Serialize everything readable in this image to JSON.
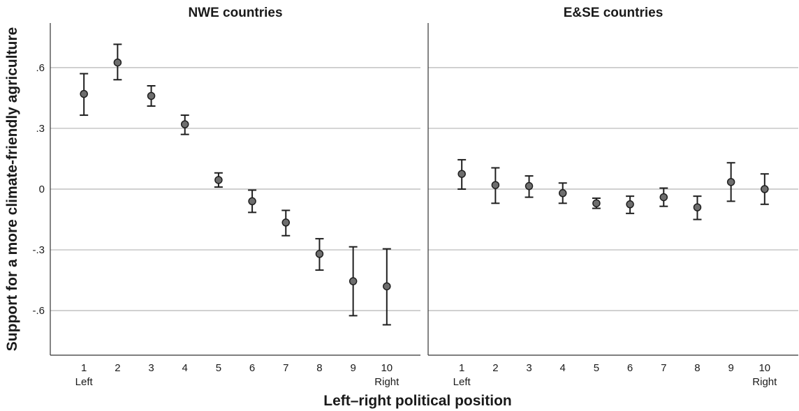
{
  "chart_data": {
    "type": "scatter",
    "ylabel": "Support for a more climate-friendly agriculture",
    "xlabel": "Left–right political position",
    "ylim": [
      -0.82,
      0.82
    ],
    "xlim": [
      0,
      11
    ],
    "y_ticks": [
      -0.6,
      -0.3,
      0,
      0.3,
      0.6
    ],
    "y_tick_labels": [
      "-.6",
      "-.3",
      "0",
      ".3",
      ".6"
    ],
    "x_ticks": [
      1,
      2,
      3,
      4,
      5,
      6,
      7,
      8,
      9,
      10
    ],
    "x_tick_labels": [
      "1",
      "2",
      "3",
      "4",
      "5",
      "6",
      "7",
      "8",
      "9",
      "10"
    ],
    "x_end_labels": {
      "left": "Left",
      "right": "Right"
    },
    "grid": "horizontal",
    "panels": [
      {
        "title": "NWE countries",
        "x": [
          1,
          2,
          3,
          4,
          5,
          6,
          7,
          8,
          9,
          10
        ],
        "y": [
          0.47,
          0.625,
          0.46,
          0.32,
          0.045,
          -0.06,
          -0.165,
          -0.32,
          -0.455,
          -0.48
        ],
        "ci_low": [
          0.365,
          0.54,
          0.41,
          0.27,
          0.01,
          -0.115,
          -0.23,
          -0.4,
          -0.625,
          -0.67
        ],
        "ci_high": [
          0.57,
          0.715,
          0.51,
          0.365,
          0.08,
          -0.005,
          -0.105,
          -0.245,
          -0.285,
          -0.295
        ]
      },
      {
        "title": "E&SE countries",
        "x": [
          1,
          2,
          3,
          4,
          5,
          6,
          7,
          8,
          9,
          10
        ],
        "y": [
          0.075,
          0.02,
          0.015,
          -0.02,
          -0.07,
          -0.075,
          -0.04,
          -0.09,
          0.035,
          0.0
        ],
        "ci_low": [
          0.0,
          -0.07,
          -0.04,
          -0.07,
          -0.095,
          -0.12,
          -0.085,
          -0.15,
          -0.06,
          -0.075
        ],
        "ci_high": [
          0.145,
          0.105,
          0.065,
          0.03,
          -0.045,
          -0.035,
          0.005,
          -0.035,
          0.13,
          0.075
        ]
      }
    ]
  }
}
